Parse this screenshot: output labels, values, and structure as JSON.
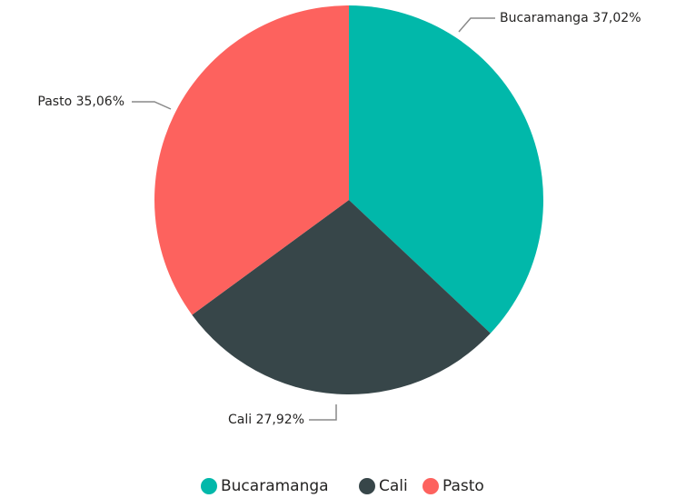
{
  "chart_data": {
    "type": "pie",
    "categories": [
      "Bucaramanga",
      "Cali",
      "Pasto"
    ],
    "values": [
      37.02,
      27.92,
      35.06
    ],
    "value_labels": [
      "37,02%",
      "27,92%",
      "35,06%"
    ],
    "colors": [
      "#01B8AA",
      "#374649",
      "#FD625E"
    ],
    "legend": "bottom"
  }
}
